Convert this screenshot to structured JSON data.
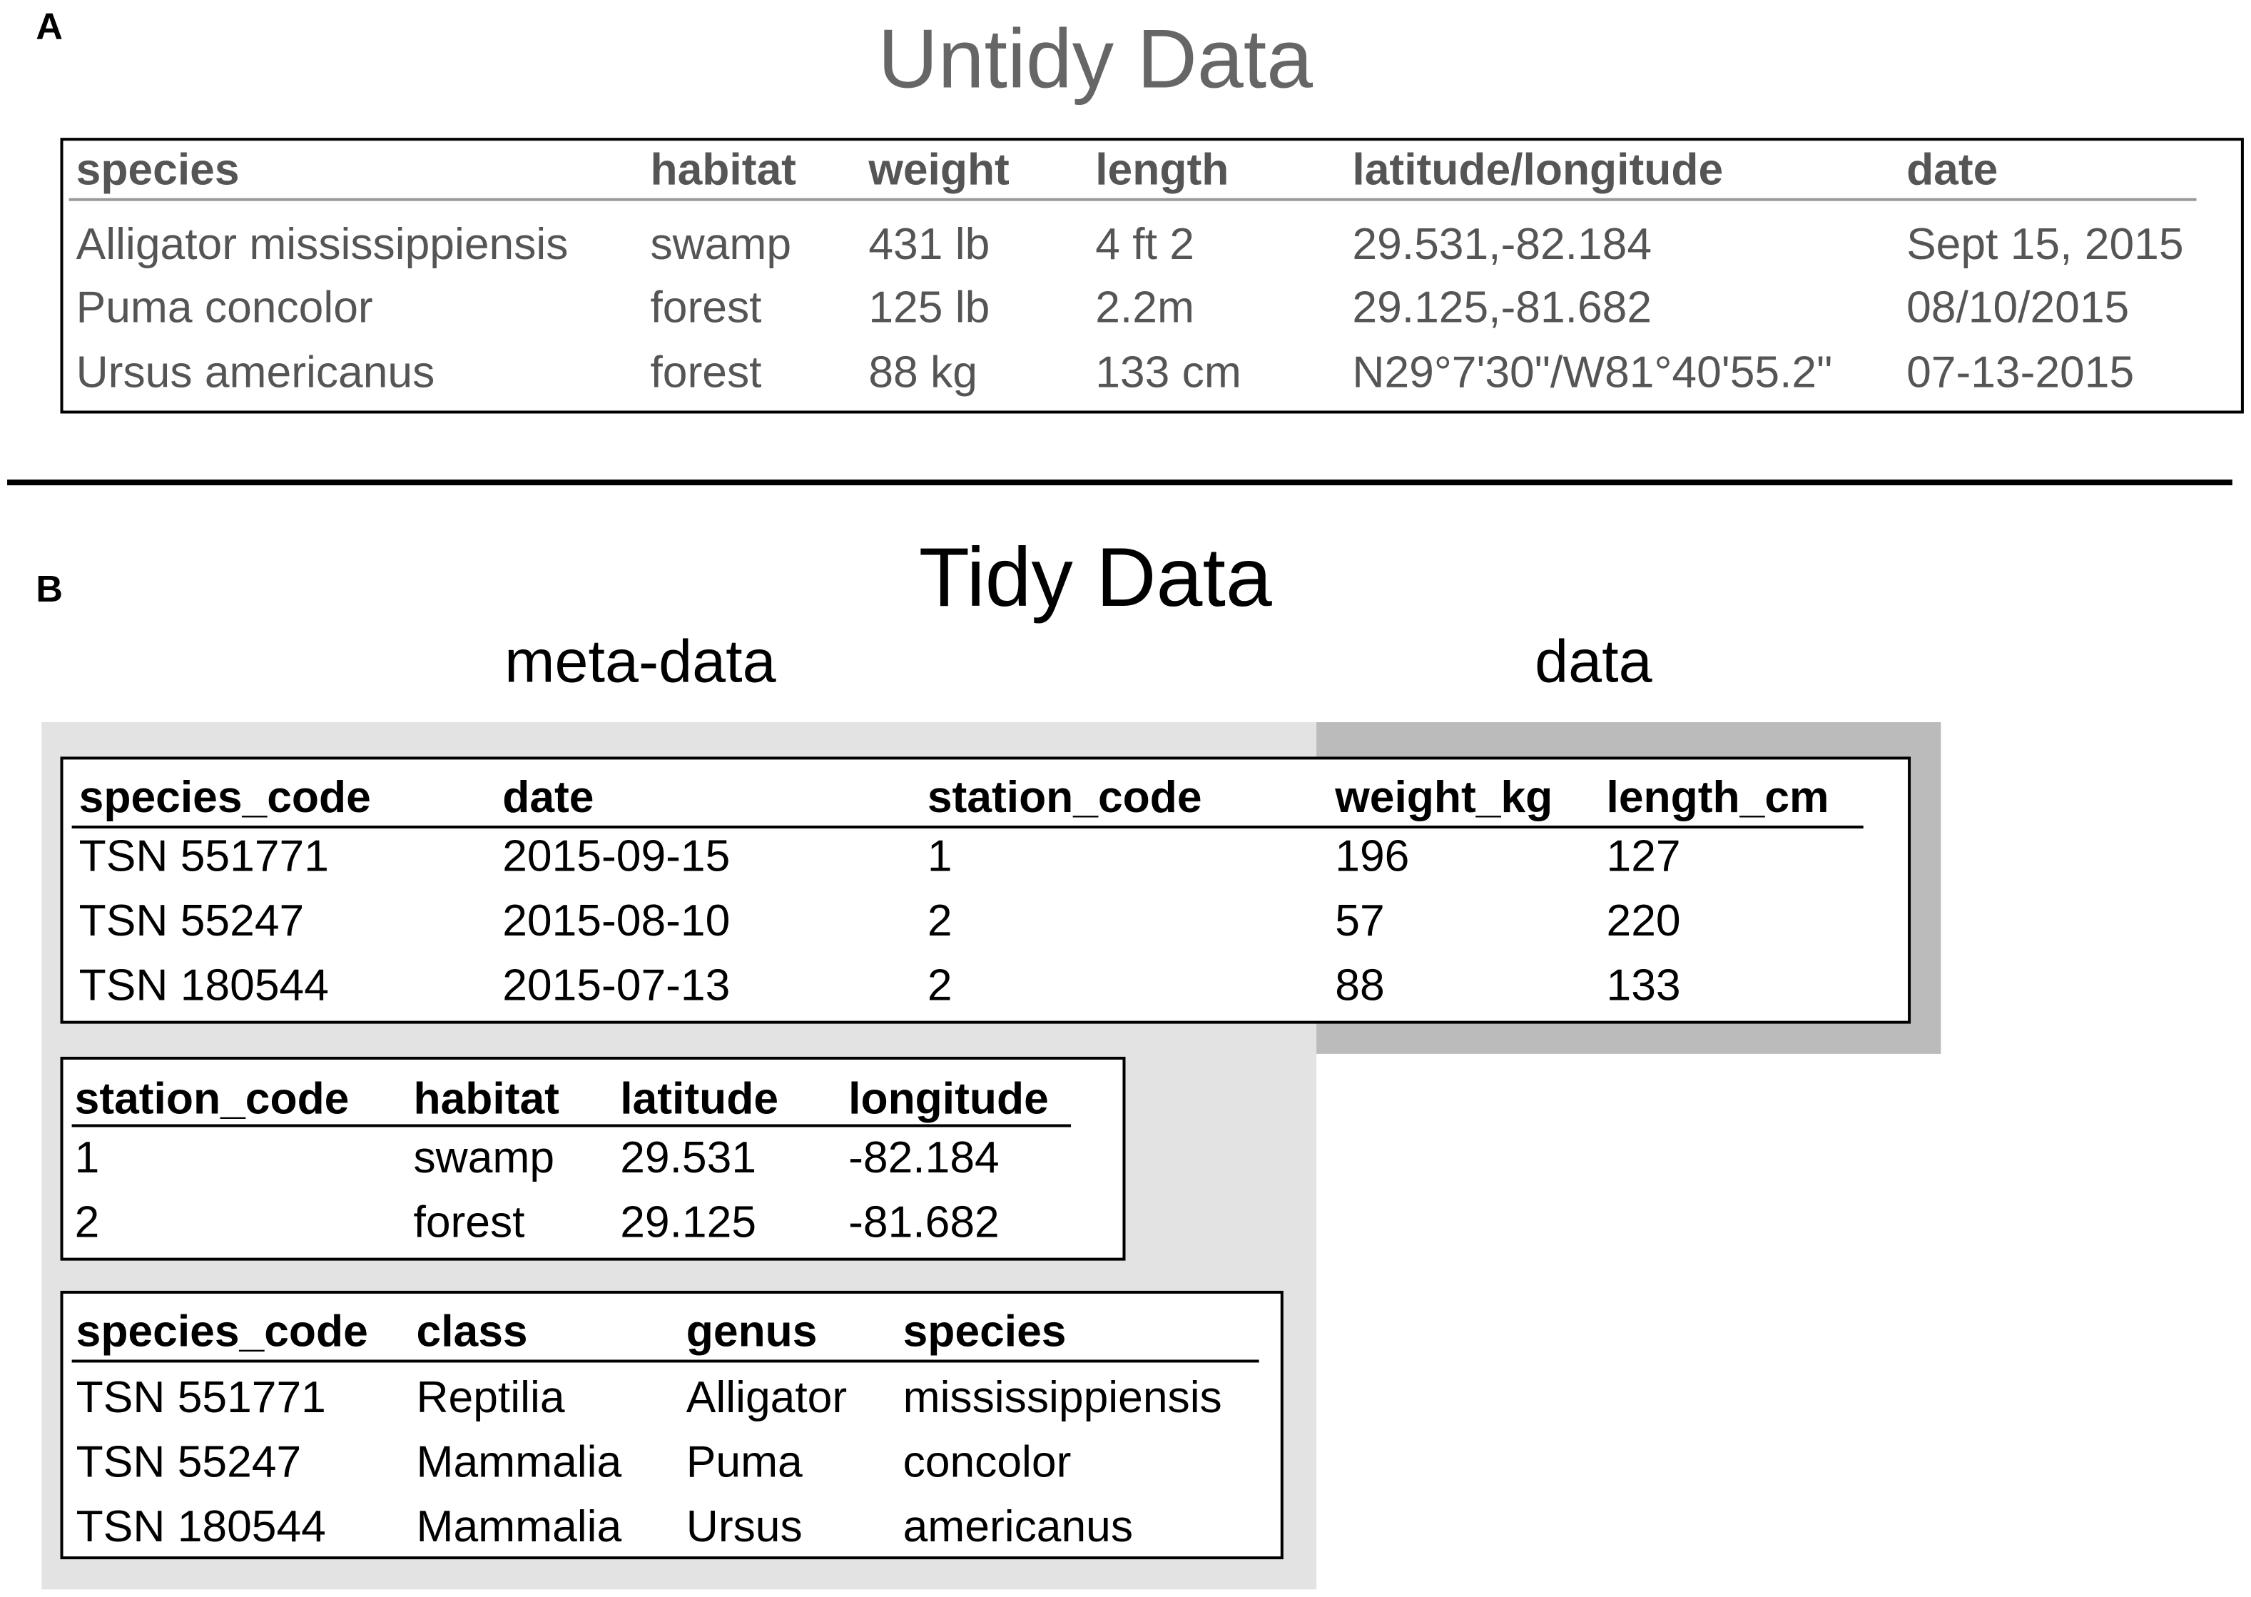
{
  "panel_a": {
    "label": "A",
    "title": "Untidy Data",
    "table": {
      "columns": [
        "species",
        "habitat",
        "weight",
        "length",
        "latitude/longitude",
        "date"
      ],
      "rows": [
        [
          "Alligator mississippiensis",
          "swamp",
          "431 lb",
          "4 ft 2",
          "29.531,-82.184",
          "Sept 15, 2015"
        ],
        [
          "Puma concolor",
          "forest",
          "125 lb",
          "2.2m",
          "29.125,-81.682",
          "08/10/2015"
        ],
        [
          "Ursus americanus",
          "forest",
          "88 kg",
          "133 cm",
          "N29°7'30\"/W81°40'55.2\"",
          "07-13-2015"
        ]
      ]
    }
  },
  "panel_b": {
    "label": "B",
    "title": "Tidy Data",
    "meta_label": "meta-data",
    "data_label": "data",
    "observations": {
      "columns": [
        "species_code",
        "date",
        "station_code",
        "weight_kg",
        "length_cm"
      ],
      "rows": [
        [
          "TSN 551771",
          "2015-09-15",
          "1",
          "196",
          "127"
        ],
        [
          "TSN 55247",
          "2015-08-10",
          "2",
          "57",
          "220"
        ],
        [
          "TSN 180544",
          "2015-07-13",
          "2",
          "88",
          "133"
        ]
      ]
    },
    "stations": {
      "columns": [
        "station_code",
        "habitat",
        "latitude",
        "longitude"
      ],
      "rows": [
        [
          "1",
          "swamp",
          "29.531",
          "-82.184"
        ],
        [
          "2",
          "forest",
          "29.125",
          "-81.682"
        ]
      ]
    },
    "species": {
      "columns": [
        "species_code",
        "class",
        "genus",
        "species"
      ],
      "rows": [
        [
          "TSN 551771",
          "Reptilia",
          "Alligator",
          "mississippiensis"
        ],
        [
          "TSN 55247",
          "Mammalia",
          "Puma",
          "concolor"
        ],
        [
          "TSN 180544",
          "Mammalia",
          "Ursus",
          "americanus"
        ]
      ]
    }
  }
}
